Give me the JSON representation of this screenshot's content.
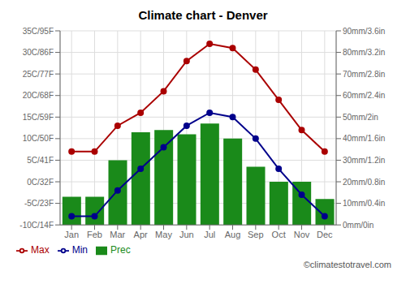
{
  "chart_data": {
    "type": "bar",
    "title": "Climate chart - Denver",
    "categories": [
      "Jan",
      "Feb",
      "Mar",
      "Apr",
      "May",
      "Jun",
      "Jul",
      "Aug",
      "Sep",
      "Oct",
      "Nov",
      "Dec"
    ],
    "series": [
      {
        "name": "Prec",
        "type": "bar",
        "axis": "y2",
        "color": "#1a8a1a",
        "values": [
          13,
          13,
          30,
          43,
          44,
          42,
          47,
          40,
          27,
          20,
          20,
          12
        ]
      },
      {
        "name": "Min",
        "type": "line",
        "color": "#00008b",
        "marker": "o",
        "line_style": "solid",
        "values": [
          -8,
          -8,
          -2,
          3,
          8,
          13,
          16,
          15,
          10,
          3,
          -3,
          -8
        ]
      },
      {
        "name": "Max",
        "type": "line",
        "color": "#aa0000",
        "marker": "o",
        "line_style": "solid",
        "values": [
          7,
          7,
          13,
          16,
          21,
          28,
          32,
          31,
          26,
          19,
          12,
          7
        ]
      }
    ],
    "ylim": [
      -10,
      35
    ],
    "yticks": [
      {
        "value": -10,
        "label": "-10C/14F"
      },
      {
        "value": -5,
        "label": "-5C/23F"
      },
      {
        "value": 0,
        "label": "0C/32F"
      },
      {
        "value": 5,
        "label": "5C/41F"
      },
      {
        "value": 10,
        "label": "10C/50F"
      },
      {
        "value": 15,
        "label": "15C/59F"
      },
      {
        "value": 20,
        "label": "20C/68F"
      },
      {
        "value": 25,
        "label": "25C/77F"
      },
      {
        "value": 30,
        "label": "30C/86F"
      },
      {
        "value": 35,
        "label": "35C/95F"
      }
    ],
    "y2lim": [
      0,
      90
    ],
    "y2ticks": [
      {
        "value": 0,
        "label": "0mm/0in"
      },
      {
        "value": 10,
        "label": "10mm/0.4in"
      },
      {
        "value": 20,
        "label": "20mm/0.8in"
      },
      {
        "value": 30,
        "label": "30mm/1.2in"
      },
      {
        "value": 40,
        "label": "40mm/1.6in"
      },
      {
        "value": 50,
        "label": "50mm/2in"
      },
      {
        "value": 60,
        "label": "60mm/2.4in"
      },
      {
        "value": 70,
        "label": "70mm/2.8in"
      },
      {
        "value": 80,
        "label": "80mm/3.2in"
      },
      {
        "value": 90,
        "label": "90mm/3.6in"
      }
    ],
    "grid": true,
    "legend": "lower left",
    "annotations": [
      "©climatestotravel.com"
    ]
  }
}
